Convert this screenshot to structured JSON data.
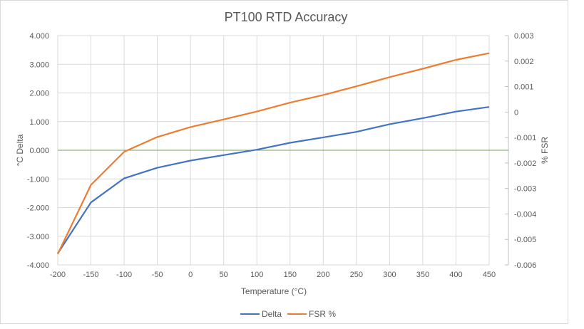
{
  "chart_data": {
    "type": "line",
    "title": "PT100 RTD Accuracy",
    "xlabel": "Temperature (°C)",
    "ylabel": "°C Delta",
    "y2label": "% FSR",
    "x": [
      -200,
      -150,
      -100,
      -50,
      0,
      50,
      100,
      150,
      200,
      250,
      300,
      350,
      400,
      450
    ],
    "x_tick_labels": [
      "-200",
      "-150",
      "-100",
      "-50",
      "0",
      "50",
      "100",
      "150",
      "200",
      "250",
      "300",
      "350",
      "400",
      "450"
    ],
    "ylim": [
      -4,
      4
    ],
    "y_tick_labels": [
      "4.000",
      "3.000",
      "2.000",
      "1.000",
      "0.000",
      "-1.000",
      "-2.000",
      "-3.000",
      "-4.000"
    ],
    "y2lim": [
      -0.006,
      0.003
    ],
    "y2_tick_labels": [
      "0.003",
      "0.002",
      "0.001",
      "0",
      "-0.001",
      "-0.002",
      "-0.003",
      "-0.004",
      "-0.005",
      "-0.006"
    ],
    "grid": true,
    "legend_position": "bottom",
    "series": [
      {
        "name": "Delta",
        "axis": "left",
        "color": "#4472c4",
        "values": [
          -3.6,
          -1.82,
          -0.98,
          -0.61,
          -0.36,
          -0.17,
          0.02,
          0.26,
          0.45,
          0.64,
          0.91,
          1.12,
          1.35,
          1.51
        ]
      },
      {
        "name": "FSR %",
        "axis": "right",
        "color": "#ed7d31",
        "values": [
          -0.00557,
          -0.00286,
          -0.00156,
          -0.00098,
          -0.00059,
          -0.00029,
          2e-05,
          0.00037,
          0.00067,
          0.00101,
          0.00137,
          0.0017,
          0.00205,
          0.00231
        ]
      }
    ],
    "zero_line_color": "#70a050"
  }
}
